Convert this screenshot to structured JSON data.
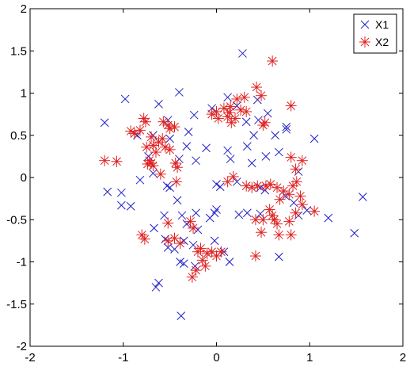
{
  "chart_data": {
    "type": "scatter",
    "title": "",
    "xlabel": "",
    "ylabel": "",
    "xlim": [
      -2,
      2
    ],
    "ylim": [
      -2,
      2
    ],
    "x_ticks": [
      -2,
      -1,
      0,
      1,
      2
    ],
    "y_ticks": [
      -2,
      -1.5,
      -1,
      -0.5,
      0,
      0.5,
      1,
      1.5,
      2
    ],
    "x_tick_labels": [
      "-2",
      "-1",
      "0",
      "1",
      "2"
    ],
    "y_tick_labels": [
      "-2",
      "-1.5",
      "-1",
      "-0.5",
      "0",
      "0.5",
      "1",
      "1.5",
      "2"
    ],
    "grid": false,
    "legend_position": "top-right",
    "series": [
      {
        "name": "X1",
        "marker": "x",
        "color": "#2020c8",
        "points": [
          [
            0.28,
            1.47
          ],
          [
            -1.2,
            0.65
          ],
          [
            -0.98,
            0.93
          ],
          [
            -0.62,
            0.87
          ],
          [
            -0.4,
            1.01
          ],
          [
            -0.05,
            0.82
          ],
          [
            0.12,
            0.95
          ],
          [
            0.22,
            0.85
          ],
          [
            0.44,
            0.92
          ],
          [
            0.55,
            0.76
          ],
          [
            -0.24,
            0.74
          ],
          [
            -0.3,
            0.54
          ],
          [
            -0.5,
            0.46
          ],
          [
            -0.68,
            0.5
          ],
          [
            -0.52,
            0.68
          ],
          [
            -0.85,
            0.5
          ],
          [
            -0.32,
            0.37
          ],
          [
            -0.11,
            0.35
          ],
          [
            0.12,
            0.32
          ],
          [
            0.33,
            0.37
          ],
          [
            0.4,
            0.5
          ],
          [
            0.63,
            0.5
          ],
          [
            0.75,
            0.6
          ],
          [
            0.75,
            0.57
          ],
          [
            1.05,
            0.46
          ],
          [
            0.32,
            0.66
          ],
          [
            0.45,
            0.68
          ],
          [
            -0.73,
            0.25
          ],
          [
            -0.4,
            0.22
          ],
          [
            -0.22,
            0.2
          ],
          [
            0.15,
            0.22
          ],
          [
            0.38,
            0.17
          ],
          [
            0.53,
            0.25
          ],
          [
            0.67,
            0.3
          ],
          [
            0.88,
            0.07
          ],
          [
            -1.17,
            -0.17
          ],
          [
            -1.02,
            -0.18
          ],
          [
            -1.02,
            -0.33
          ],
          [
            -0.92,
            -0.34
          ],
          [
            -0.82,
            -0.03
          ],
          [
            -0.68,
            0.05
          ],
          [
            -0.53,
            -0.1
          ],
          [
            -0.5,
            -0.12
          ],
          [
            -0.42,
            -0.27
          ],
          [
            -0.22,
            -0.42
          ],
          [
            0.0,
            -0.08
          ],
          [
            0.04,
            -0.11
          ],
          [
            0.22,
            -0.05
          ],
          [
            0.47,
            -0.12
          ],
          [
            0.52,
            -0.15
          ],
          [
            0.74,
            -0.22
          ],
          [
            0.83,
            -0.3
          ],
          [
            0.88,
            -0.45
          ],
          [
            0.97,
            -0.39
          ],
          [
            0.33,
            -0.42
          ],
          [
            0.47,
            -0.43
          ],
          [
            0.24,
            -0.44
          ],
          [
            -0.37,
            -0.45
          ],
          [
            -0.56,
            -0.45
          ],
          [
            -0.67,
            -0.6
          ],
          [
            -0.32,
            -0.55
          ],
          [
            -0.2,
            -0.62
          ],
          [
            -0.07,
            -0.48
          ],
          [
            -0.02,
            -0.42
          ],
          [
            0.0,
            -0.38
          ],
          [
            -0.02,
            -0.75
          ],
          [
            0.08,
            -0.88
          ],
          [
            0.14,
            -1.0
          ],
          [
            -0.25,
            -0.8
          ],
          [
            -0.35,
            -0.75
          ],
          [
            -0.55,
            -0.73
          ],
          [
            -0.52,
            -0.83
          ],
          [
            -0.45,
            -0.85
          ],
          [
            -0.39,
            -1.0
          ],
          [
            -0.35,
            -1.02
          ],
          [
            -0.23,
            -1.05
          ],
          [
            -0.62,
            -1.25
          ],
          [
            -0.65,
            -1.3
          ],
          [
            -0.38,
            -1.64
          ],
          [
            0.67,
            -0.94
          ],
          [
            1.2,
            -0.48
          ],
          [
            1.48,
            -0.66
          ],
          [
            1.57,
            -0.23
          ]
        ]
      },
      {
        "name": "X2",
        "marker": "star",
        "color": "#e02020",
        "points": [
          [
            0.6,
            1.38
          ],
          [
            0.43,
            1.07
          ],
          [
            0.48,
            0.97
          ],
          [
            0.3,
            0.95
          ],
          [
            0.22,
            0.93
          ],
          [
            0.8,
            0.85
          ],
          [
            0.15,
            0.84
          ],
          [
            0.26,
            0.8
          ],
          [
            0.32,
            0.78
          ],
          [
            0.08,
            0.82
          ],
          [
            0.0,
            0.78
          ],
          [
            -0.05,
            0.75
          ],
          [
            0.02,
            0.7
          ],
          [
            0.12,
            0.72
          ],
          [
            0.16,
            0.65
          ],
          [
            0.2,
            0.7
          ],
          [
            0.14,
            0.77
          ],
          [
            0.52,
            0.65
          ],
          [
            0.5,
            0.62
          ],
          [
            -0.78,
            0.7
          ],
          [
            -0.76,
            0.66
          ],
          [
            -0.57,
            0.66
          ],
          [
            -0.52,
            0.62
          ],
          [
            -0.5,
            0.58
          ],
          [
            -0.45,
            0.6
          ],
          [
            -0.92,
            0.55
          ],
          [
            -0.88,
            0.52
          ],
          [
            -0.82,
            0.56
          ],
          [
            -0.7,
            0.48
          ],
          [
            -0.62,
            0.42
          ],
          [
            -0.58,
            0.46
          ],
          [
            -0.75,
            0.36
          ],
          [
            -0.68,
            0.38
          ],
          [
            -0.65,
            0.3
          ],
          [
            -0.55,
            0.36
          ],
          [
            -0.5,
            0.33
          ],
          [
            -0.72,
            0.2
          ],
          [
            -0.7,
            0.17
          ],
          [
            -0.68,
            0.14
          ],
          [
            -0.74,
            0.16
          ],
          [
            -0.44,
            0.17
          ],
          [
            -0.42,
            0.12
          ],
          [
            -0.6,
            0.04
          ],
          [
            -1.2,
            0.2
          ],
          [
            -1.07,
            0.19
          ],
          [
            0.8,
            0.24
          ],
          [
            0.92,
            0.2
          ],
          [
            0.85,
            0.1
          ],
          [
            0.86,
            -0.05
          ],
          [
            0.82,
            -0.1
          ],
          [
            0.32,
            -0.1
          ],
          [
            0.38,
            -0.12
          ],
          [
            0.44,
            -0.1
          ],
          [
            0.53,
            -0.1
          ],
          [
            0.58,
            -0.08
          ],
          [
            0.65,
            -0.12
          ],
          [
            0.72,
            -0.16
          ],
          [
            0.78,
            -0.2
          ],
          [
            0.9,
            -0.22
          ],
          [
            0.68,
            -0.26
          ],
          [
            0.42,
            -0.5
          ],
          [
            0.5,
            -0.5
          ],
          [
            0.57,
            -0.38
          ],
          [
            0.6,
            -0.45
          ],
          [
            0.62,
            -0.5
          ],
          [
            0.65,
            -0.55
          ],
          [
            0.48,
            -0.65
          ],
          [
            0.67,
            -0.68
          ],
          [
            0.8,
            -0.68
          ],
          [
            0.78,
            -0.52
          ],
          [
            0.85,
            -0.42
          ],
          [
            0.92,
            -0.32
          ],
          [
            1.05,
            -0.4
          ],
          [
            -0.52,
            -0.54
          ],
          [
            -0.45,
            -0.72
          ],
          [
            -0.52,
            -0.75
          ],
          [
            -0.39,
            -0.78
          ],
          [
            -0.8,
            -0.68
          ],
          [
            -0.77,
            -0.73
          ],
          [
            -0.28,
            -0.52
          ],
          [
            -0.25,
            -0.6
          ],
          [
            -0.2,
            -0.88
          ],
          [
            -0.17,
            -0.84
          ],
          [
            -0.1,
            -0.9
          ],
          [
            -0.05,
            -0.88
          ],
          [
            0.0,
            -0.93
          ],
          [
            0.05,
            -0.88
          ],
          [
            -0.15,
            -0.98
          ],
          [
            -0.12,
            -1.05
          ],
          [
            -0.22,
            -1.1
          ],
          [
            -0.26,
            -1.18
          ],
          [
            0.42,
            -0.93
          ],
          [
            0.18,
            0.01
          ],
          [
            0.12,
            -0.05
          ],
          [
            -0.43,
            -0.05
          ]
        ]
      }
    ]
  }
}
